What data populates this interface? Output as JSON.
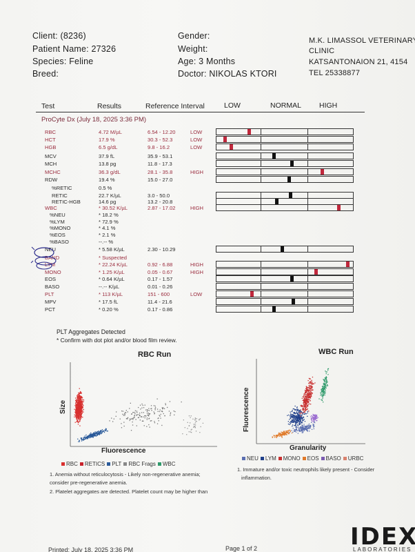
{
  "header": {
    "client": "Client:  (8236)",
    "patient": "Patient Name: 27326",
    "species": "Species: Feline",
    "breed": "Breed:",
    "gender": "Gender:",
    "weight": "Weight:",
    "age": "Age: 3 Months",
    "doctor": "Doctor: NIKOLAS KTORI",
    "clinic_line1": "M.K. LIMASSOL VETERINARY",
    "clinic_line2": "CLINIC",
    "clinic_address": "KATSANTONAION 21, 4154",
    "clinic_tel": "TEL 25338877"
  },
  "columns": {
    "test": "Test",
    "results": "Results",
    "reference": "Reference Interval",
    "low": "LOW",
    "normal": "NORMAL",
    "high": "HIGH"
  },
  "section_title": "ProCyte Dx (July 18, 2025 3:36 PM)",
  "rows": [
    {
      "test": "RBC",
      "result": "4.72 M/µL",
      "ref": "6.54 - 12.20",
      "flag": "LOW",
      "color": "red",
      "marker": 0.23
    },
    {
      "test": "HCT",
      "result": "17.9 %",
      "ref": "30.3 - 52.3",
      "flag": "LOW",
      "color": "red",
      "marker": 0.05
    },
    {
      "test": "HGB",
      "result": "6.5 g/dL",
      "ref": "9.8 - 16.2",
      "flag": "LOW",
      "color": "red",
      "marker": 0.1
    },
    {
      "test": "MCV",
      "result": "37.9 fL",
      "ref": "35.9 - 53.1",
      "flag": "",
      "color": "black",
      "marker": 0.42
    },
    {
      "test": "MCH",
      "result": "13.8 pg",
      "ref": "11.8 - 17.3",
      "flag": "",
      "color": "black",
      "marker": 0.55
    },
    {
      "test": "MCHC",
      "result": "36.3 g/dL",
      "ref": "28.1 - 35.8",
      "flag": "HIGH",
      "color": "red",
      "marker": 0.78
    },
    {
      "test": "RDW",
      "result": "19.4 %",
      "ref": "15.0 - 27.0",
      "flag": "",
      "color": "black",
      "marker": 0.53
    },
    {
      "test": "%RETIC",
      "result": "0.5 %",
      "ref": "",
      "flag": "",
      "color": "black",
      "marker": null
    },
    {
      "test": "RETIC",
      "result": "22.7 K/µL",
      "ref": "3.0 - 50.0",
      "flag": "",
      "color": "black",
      "marker": 0.54
    },
    {
      "test": "RETIC-HGB",
      "result": "14.6 pg",
      "ref": "13.2 - 20.8",
      "flag": "",
      "color": "black",
      "marker": 0.44
    },
    {
      "test": "WBC",
      "result": "* 30.52 K/µL",
      "ref": "2.87 - 17.02",
      "flag": "HIGH",
      "color": "red",
      "marker": 0.9
    },
    {
      "test": "%NEU",
      "result": "* 18.2 %",
      "ref": "",
      "flag": "",
      "color": "black",
      "marker": null
    },
    {
      "test": "%LYM",
      "result": "* 72.9 %",
      "ref": "",
      "flag": "",
      "color": "black",
      "marker": null
    },
    {
      "test": "%MONO",
      "result": "* 4.1 %",
      "ref": "",
      "flag": "",
      "color": "black",
      "marker": null
    },
    {
      "test": "%EOS",
      "result": "* 2.1 %",
      "ref": "",
      "flag": "",
      "color": "black",
      "marker": null
    },
    {
      "test": "%BASO",
      "result": "--.-- %",
      "ref": "",
      "flag": "",
      "color": "black",
      "marker": null
    },
    {
      "test": "NEU",
      "result": "* 5.58 K/µL",
      "ref": "2.30 - 10.29",
      "flag": "",
      "color": "black",
      "marker": 0.48
    },
    {
      "test": "BAND",
      "result": "* Suspected",
      "ref": "",
      "flag": "",
      "color": "red",
      "marker": null
    },
    {
      "test": "LYM",
      "result": "* 22.24 K/µL",
      "ref": "0.92 - 6.88",
      "flag": "HIGH",
      "color": "red",
      "marker": 0.97
    },
    {
      "test": "MONO",
      "result": "* 1.25 K/µL",
      "ref": "0.05 - 0.67",
      "flag": "HIGH",
      "color": "red",
      "marker": 0.73
    },
    {
      "test": "EOS",
      "result": "* 0.64 K/µL",
      "ref": "0.17 - 1.57",
      "flag": "",
      "color": "black",
      "marker": 0.55
    },
    {
      "test": "BASO",
      "result": "--.-- K/µL",
      "ref": "0.01 - 0.26",
      "flag": "",
      "color": "black",
      "marker": null
    },
    {
      "test": "PLT",
      "result": "* 113 K/µL",
      "ref": "151 - 600",
      "flag": "LOW",
      "color": "red",
      "marker": 0.25
    },
    {
      "test": "MPV",
      "result": "* 17.5 fL",
      "ref": "11.4 - 21.6",
      "flag": "",
      "color": "black",
      "marker": 0.56
    },
    {
      "test": "PCT",
      "result": "* 0.20 %",
      "ref": "0.17 - 0.86",
      "flag": "",
      "color": "black",
      "marker": 0.42
    }
  ],
  "plt_note": {
    "line1": "PLT Aggregates Detected",
    "line2": "* Confirm with dot plot and/or blood film review."
  },
  "rbc_chart": {
    "title": "RBC Run",
    "xlabel": "Fluorescence",
    "ylabel": "Size",
    "legend": [
      {
        "label": "RBC",
        "color": "#d9302f"
      },
      {
        "label": "RETICS",
        "color": "#c8232c"
      },
      {
        "label": "PLT",
        "color": "#2a5a9a"
      },
      {
        "label": "RBC Frags",
        "color": "#888888"
      },
      {
        "label": "WBC",
        "color": "#2f9a6b"
      }
    ],
    "comment1": "1. Anemia without reticulocytosis - Likely non-regenerative anemia;",
    "comment1b": "consider pre-regenerative anemia.",
    "comment2": "2. Platelet aggregates are detected. Platelet count may be higher than"
  },
  "wbc_chart": {
    "title": "WBC Run",
    "xlabel": "Granularity",
    "ylabel": "Fluorescence",
    "legend": [
      {
        "label": "NEU",
        "color": "#5b6fb0"
      },
      {
        "label": "LYM",
        "color": "#1f3f8a"
      },
      {
        "label": "MONO",
        "color": "#c83030"
      },
      {
        "label": "EOS",
        "color": "#e07a2a"
      },
      {
        "label": "BASO",
        "color": "#7a5bb0"
      },
      {
        "label": "URBC",
        "color": "#d9826e"
      }
    ],
    "comment1": "1. Immature and/or toxic neutrophils likely present - Consider",
    "comment1b": "inflammation."
  },
  "footer": {
    "printed": "Printed: July 18, 2025 3:36 PM",
    "page": "Page 1 of 2",
    "logo": "IDEXX",
    "logo_sub": "LABORATORIES"
  }
}
